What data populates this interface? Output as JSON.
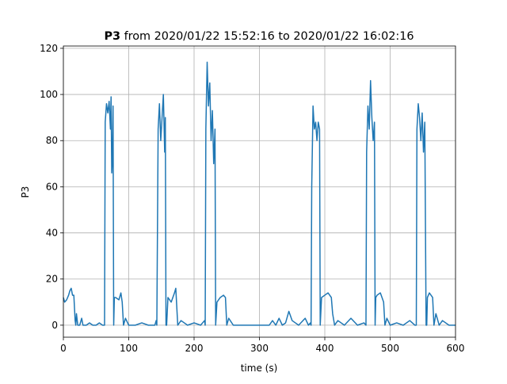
{
  "chart_data": {
    "type": "line",
    "title": [
      "P3",
      "from 2020/01/22 15:52:16 to 2020/01/22 16:02:16"
    ],
    "x_label": "time (s)",
    "y_label": "P3",
    "xlim": [
      0,
      600
    ],
    "ylim": [
      -5.2,
      121
    ],
    "xticks": [
      0,
      100,
      200,
      300,
      400,
      500,
      600
    ],
    "yticks": [
      0,
      20,
      40,
      60,
      80,
      100,
      120
    ],
    "grid": true,
    "series": [
      {
        "color": "#1f77b4",
        "x": [
          0,
          2,
          5,
          8,
          10,
          12,
          14,
          16,
          18,
          19,
          20,
          22,
          25,
          28,
          30,
          35,
          40,
          45,
          50,
          55,
          60,
          62,
          63,
          64,
          66,
          68,
          70,
          72,
          73,
          74,
          75,
          76,
          77,
          78,
          80,
          85,
          88,
          90,
          92,
          95,
          100,
          110,
          120,
          130,
          140,
          142,
          143,
          145,
          147,
          149,
          151,
          153,
          155,
          156,
          157,
          158,
          160,
          165,
          170,
          172,
          175,
          180,
          190,
          200,
          210,
          216,
          217,
          218,
          220,
          222,
          224,
          226,
          228,
          230,
          232,
          233,
          235,
          240,
          245,
          248,
          250,
          253,
          260,
          280,
          300,
          315,
          320,
          325,
          330,
          335,
          340,
          345,
          350,
          360,
          370,
          375,
          378,
          379,
          380,
          382,
          384,
          386,
          388,
          390,
          392,
          393,
          395,
          400,
          405,
          410,
          412,
          415,
          420,
          430,
          440,
          450,
          460,
          463,
          464,
          466,
          468,
          470,
          472,
          474,
          476,
          477,
          478,
          480,
          485,
          490,
          492,
          495,
          500,
          510,
          520,
          530,
          538,
          540,
          541,
          543,
          545,
          547,
          549,
          551,
          553,
          555,
          556,
          557,
          560,
          565,
          567,
          570,
          575,
          580,
          590,
          600
        ],
        "values": [
          12,
          10,
          11,
          13,
          15,
          16,
          13,
          13,
          2,
          0,
          5,
          0,
          0,
          3,
          0,
          0,
          1,
          0,
          0,
          1,
          0,
          0,
          0,
          88,
          96,
          92,
          97,
          85,
          99,
          66,
          72,
          95,
          0,
          12,
          12,
          11,
          14,
          10,
          0,
          3,
          0,
          0,
          1,
          0,
          0,
          2,
          0,
          85,
          96,
          80,
          90,
          100,
          75,
          90,
          0,
          0,
          12,
          10,
          14,
          16,
          0,
          2,
          0,
          1,
          0,
          2,
          0,
          85,
          114,
          95,
          105,
          80,
          93,
          70,
          85,
          0,
          10,
          12,
          13,
          12,
          0,
          3,
          0,
          0,
          0,
          0,
          2,
          0,
          3,
          0,
          1,
          6,
          2,
          0,
          3,
          0,
          1,
          0,
          60,
          95,
          85,
          88,
          80,
          88,
          85,
          0,
          12,
          13,
          14,
          12,
          5,
          0,
          2,
          0,
          3,
          0,
          1,
          0,
          75,
          95,
          85,
          106,
          90,
          80,
          88,
          0,
          12,
          13,
          14,
          10,
          0,
          3,
          0,
          1,
          0,
          2,
          0,
          0,
          85,
          96,
          90,
          80,
          92,
          75,
          88,
          0,
          0,
          12,
          14,
          12,
          0,
          5,
          0,
          2,
          0,
          0
        ]
      }
    ]
  }
}
